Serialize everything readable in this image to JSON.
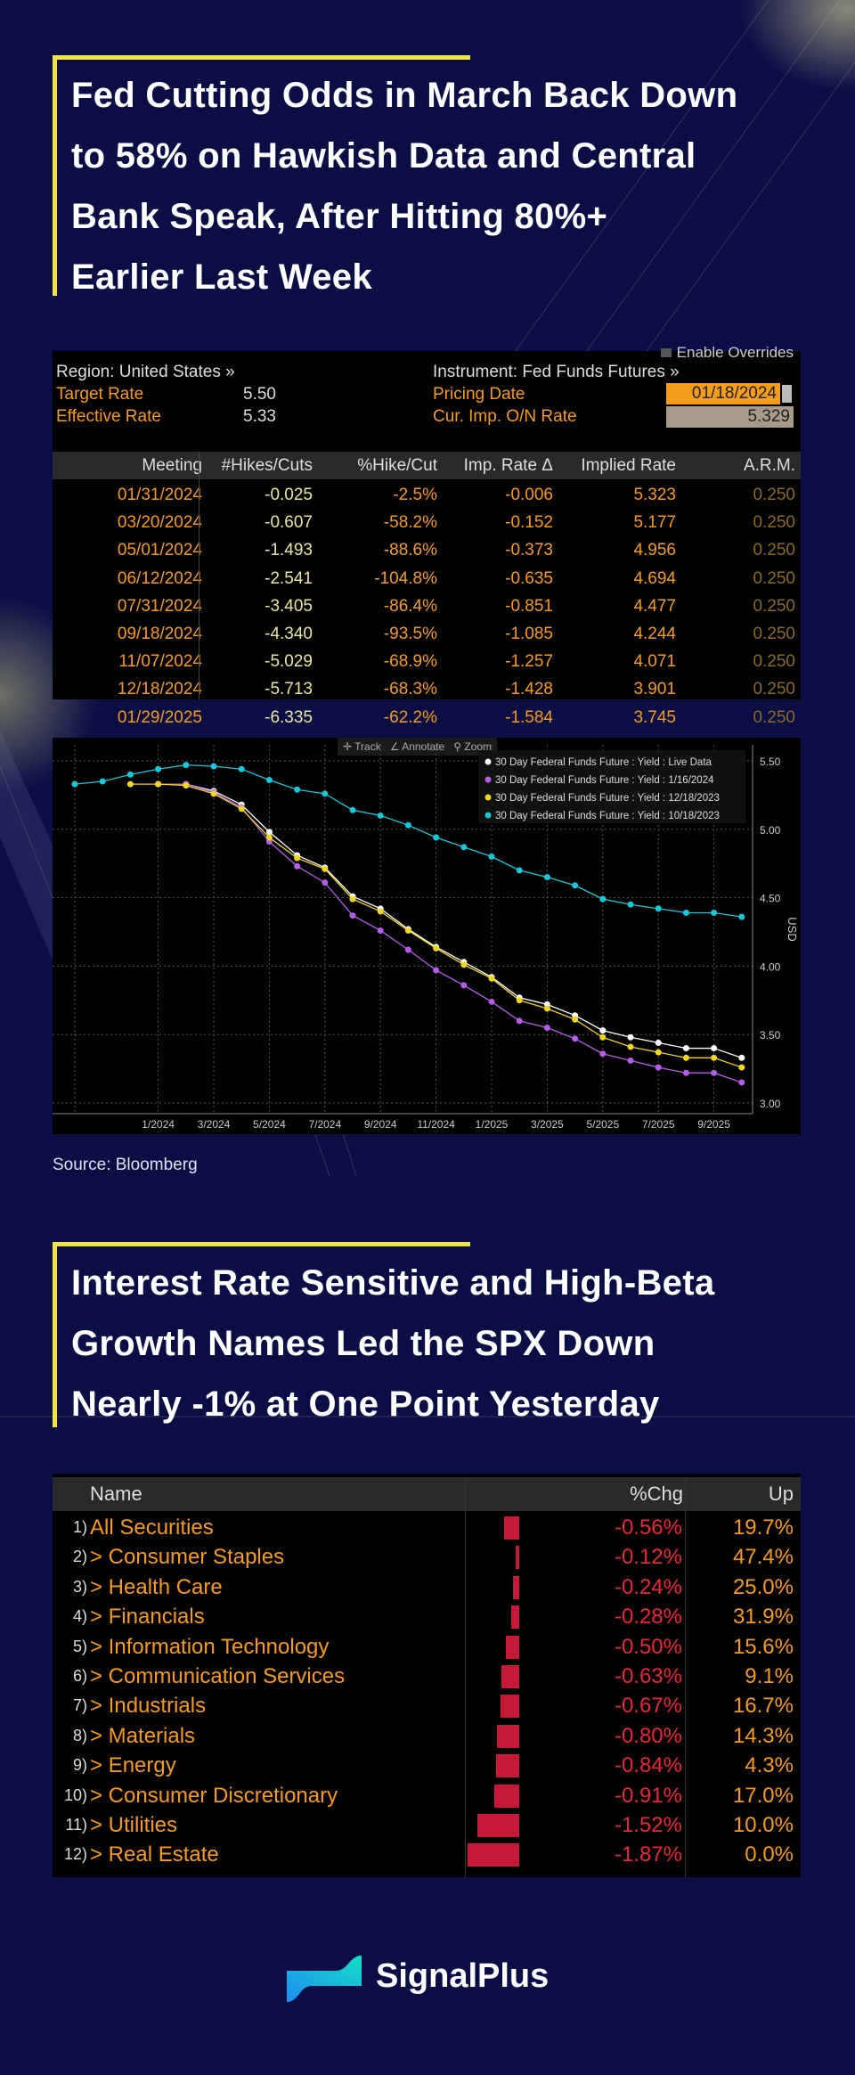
{
  "section1": {
    "title_lines": [
      "Fed Cutting Odds in March Back Down",
      "to 58% on Hawkish Data and Central",
      "Bank Speak, After Hitting 80%+",
      "Earlier Last Week"
    ]
  },
  "wirp": {
    "enable_overrides": "Enable Overrides",
    "region": "Region: United States »",
    "target_rate_label": "Target Rate",
    "target_rate": "5.50",
    "effective_rate_label": "Effective Rate",
    "effective_rate": "5.33",
    "instrument": "Instrument: Fed Funds Futures »",
    "pricing_date_label": "Pricing Date",
    "pricing_date": "01/18/2024",
    "on_rate_label": "Cur. Imp. O/N Rate",
    "on_rate": "5.329",
    "headers": [
      "Meeting",
      "#Hikes/Cuts",
      "%Hike/Cut",
      "Imp. Rate Δ",
      "Implied Rate",
      "A.R.M."
    ],
    "rows": [
      [
        "01/31/2024",
        "-0.025",
        "-2.5%",
        "-0.006",
        "5.323",
        "0.250"
      ],
      [
        "03/20/2024",
        "-0.607",
        "-58.2%",
        "-0.152",
        "5.177",
        "0.250"
      ],
      [
        "05/01/2024",
        "-1.493",
        "-88.6%",
        "-0.373",
        "4.956",
        "0.250"
      ],
      [
        "06/12/2024",
        "-2.541",
        "-104.8%",
        "-0.635",
        "4.694",
        "0.250"
      ],
      [
        "07/31/2024",
        "-3.405",
        "-86.4%",
        "-0.851",
        "4.477",
        "0.250"
      ],
      [
        "09/18/2024",
        "-4.340",
        "-93.5%",
        "-1.085",
        "4.244",
        "0.250"
      ],
      [
        "11/07/2024",
        "-5.029",
        "-68.9%",
        "-1.257",
        "4.071",
        "0.250"
      ],
      [
        "12/18/2024",
        "-5.713",
        "-68.3%",
        "-1.428",
        "3.901",
        "0.250"
      ],
      [
        "01/29/2025",
        "-6.335",
        "-62.2%",
        "-1.584",
        "3.745",
        "0.250"
      ]
    ]
  },
  "chart_toolbar": {
    "track": "Track",
    "annotate": "Annotate",
    "zoom": "Zoom"
  },
  "chart_data": {
    "type": "line",
    "ylabel": "USD",
    "ylim": [
      3.0,
      5.5
    ],
    "yticks": [
      "5.50",
      "5.00",
      "4.50",
      "4.00",
      "3.50",
      "3.00"
    ],
    "xticks": [
      "1/2024",
      "3/2024",
      "5/2024",
      "7/2024",
      "9/2024",
      "11/2024",
      "1/2025",
      "3/2025",
      "5/2025",
      "7/2025",
      "9/2025"
    ],
    "x_start": "10/2023",
    "legend_position": "top-right",
    "series": [
      {
        "name": "30 Day Federal Funds Future : Yield : Live Data",
        "color": "#ffffff",
        "start_month": 3,
        "values": [
          5.33,
          5.33,
          5.28,
          5.18,
          4.98,
          4.81,
          4.72,
          4.51,
          4.42,
          4.27,
          4.14,
          4.03,
          3.92,
          3.77,
          3.72,
          3.64,
          3.53,
          3.48,
          3.44,
          3.4,
          3.4,
          3.33
        ]
      },
      {
        "name": "30 Day Federal Funds Future : Yield : 1/16/2024",
        "color": "#b45ee8",
        "start_month": 3,
        "values": [
          5.33,
          5.33,
          5.27,
          5.16,
          4.91,
          4.73,
          4.61,
          4.37,
          4.26,
          4.12,
          3.97,
          3.86,
          3.74,
          3.6,
          3.55,
          3.47,
          3.36,
          3.31,
          3.26,
          3.22,
          3.22,
          3.15
        ]
      },
      {
        "name": "30 Day Federal Funds Future : Yield : 12/18/2023",
        "color": "#f2d622",
        "start_month": 2,
        "values": [
          5.33,
          5.33,
          5.32,
          5.26,
          5.15,
          4.94,
          4.79,
          4.71,
          4.49,
          4.4,
          4.26,
          4.13,
          4.01,
          3.91,
          3.75,
          3.69,
          3.61,
          3.48,
          3.41,
          3.37,
          3.33,
          3.33,
          3.26
        ]
      },
      {
        "name": "30 Day Federal Funds Future : Yield : 10/18/2023",
        "color": "#19c8d8",
        "start_month": 0,
        "values": [
          5.33,
          5.35,
          5.4,
          5.44,
          5.47,
          5.46,
          5.44,
          5.36,
          5.29,
          5.26,
          5.14,
          5.1,
          5.03,
          4.94,
          4.87,
          4.8,
          4.7,
          4.65,
          4.59,
          4.49,
          4.45,
          4.42,
          4.39,
          4.39,
          4.36
        ]
      }
    ]
  },
  "source": "Source: Bloomberg",
  "section2": {
    "title_lines": [
      "Interest Rate Sensitive and High-Beta",
      "Growth Names Led the SPX Down",
      "Nearly -1% at One Point Yesterday"
    ]
  },
  "sectors": {
    "headers": {
      "name": "Name",
      "chg": "%Chg",
      "up": "Up"
    },
    "rows": [
      {
        "num": "1)",
        "name": "All Securities",
        "chg": "-0.56%",
        "chg_value": -0.56,
        "up": "19.7%"
      },
      {
        "num": "2)",
        "name": "> Consumer Staples",
        "chg": "-0.12%",
        "chg_value": -0.12,
        "up": "47.4%"
      },
      {
        "num": "3)",
        "name": "> Health Care",
        "chg": "-0.24%",
        "chg_value": -0.24,
        "up": "25.0%"
      },
      {
        "num": "4)",
        "name": "> Financials",
        "chg": "-0.28%",
        "chg_value": -0.28,
        "up": "31.9%"
      },
      {
        "num": "5)",
        "name": "> Information Technology",
        "chg": "-0.50%",
        "chg_value": -0.5,
        "up": "15.6%"
      },
      {
        "num": "6)",
        "name": "> Communication Services",
        "chg": "-0.63%",
        "chg_value": -0.63,
        "up": "9.1%"
      },
      {
        "num": "7)",
        "name": "> Industrials",
        "chg": "-0.67%",
        "chg_value": -0.67,
        "up": "16.7%"
      },
      {
        "num": "8)",
        "name": "> Materials",
        "chg": "-0.80%",
        "chg_value": -0.8,
        "up": "14.3%"
      },
      {
        "num": "9)",
        "name": "> Energy",
        "chg": "-0.84%",
        "chg_value": -0.84,
        "up": "4.3%"
      },
      {
        "num": "10)",
        "name": "> Consumer Discretionary",
        "chg": "-0.91%",
        "chg_value": -0.91,
        "up": "17.0%"
      },
      {
        "num": "11)",
        "name": "> Utilities",
        "chg": "-1.52%",
        "chg_value": -1.52,
        "up": "10.0%"
      },
      {
        "num": "12)",
        "name": "> Real Estate",
        "chg": "-1.87%",
        "chg_value": -1.87,
        "up": "0.0%"
      }
    ]
  },
  "brand": {
    "name": "SignalPlus"
  }
}
